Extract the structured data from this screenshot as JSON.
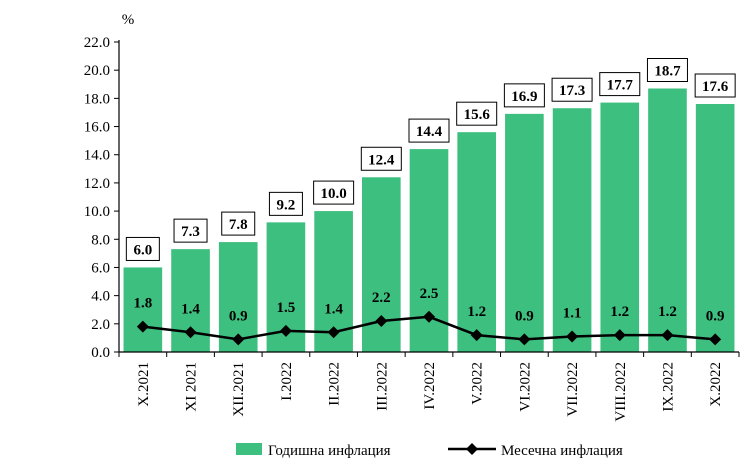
{
  "chart_data": {
    "type": "bar",
    "y_unit": "%",
    "ylim": [
      0,
      22
    ],
    "y_ticks": [
      "0.0",
      "2.0",
      "4.0",
      "6.0",
      "8.0",
      "10.0",
      "12.0",
      "14.0",
      "16.0",
      "18.0",
      "20.0",
      "22.0"
    ],
    "grid": false,
    "legend_position": "bottom",
    "categories": [
      "X.2021",
      "XI 2021",
      "XII.2021",
      "I.2022",
      "II.2022",
      "III.2022",
      "IV.2022",
      "V.2022",
      "VI.2022",
      "VII.2022",
      "VIII.2022",
      "IX.2022",
      "X.2022"
    ],
    "series": [
      {
        "name": "Годишна инфлация",
        "type": "bar",
        "color": "#3dbf7f",
        "values": [
          6.0,
          7.3,
          7.8,
          9.2,
          10.0,
          12.4,
          14.4,
          15.6,
          16.9,
          17.3,
          17.7,
          18.7,
          17.6
        ],
        "labels": [
          "6.0",
          "7.3",
          "7.8",
          "9.2",
          "10.0",
          "12.4",
          "14.4",
          "15.6",
          "16.9",
          "17.3",
          "17.7",
          "18.7",
          "17.6"
        ]
      },
      {
        "name": "Месечна инфлация",
        "type": "line",
        "color": "#000000",
        "values": [
          1.8,
          1.4,
          0.9,
          1.5,
          1.4,
          2.2,
          2.5,
          1.2,
          0.9,
          1.1,
          1.2,
          1.2,
          0.9
        ],
        "labels": [
          "1.8",
          "1.4",
          "0.9",
          "1.5",
          "1.4",
          "2.2",
          "2.5",
          "1.2",
          "0.9",
          "1.1",
          "1.2",
          "1.2",
          "0.9"
        ]
      }
    ]
  }
}
